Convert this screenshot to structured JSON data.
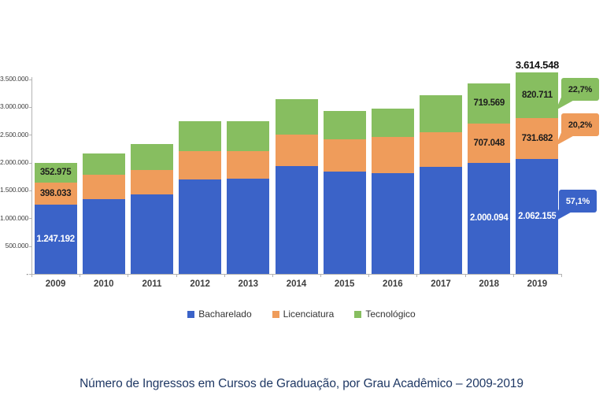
{
  "figure": {
    "title": "Número de Ingressos em Cursos de Graduação, por Grau Acadêmico – 2009-2019",
    "title_color": "#1F3864",
    "background": "#FFFFFF"
  },
  "chart_data": {
    "type": "bar",
    "stacked": true,
    "title": "Número de Ingressos em Cursos de Graduação, por Grau Acadêmico – 2009-2019",
    "xlabel": "",
    "ylabel": "",
    "categories": [
      "2009",
      "2010",
      "2011",
      "2012",
      "2013",
      "2014",
      "2015",
      "2016",
      "2017",
      "2018",
      "2019"
    ],
    "series": [
      {
        "name": "Bacharelado",
        "color": "#3B63C8",
        "label_color": "#FFFFFF",
        "values": [
          1247192,
          1350000,
          1430000,
          1690000,
          1710000,
          1940000,
          1840000,
          1810000,
          1920000,
          2000094,
          2062155
        ]
      },
      {
        "name": "Licenciatura",
        "color": "#EF9C5B",
        "label_color": "#1D1D1D",
        "values": [
          398033,
          425000,
          440000,
          510000,
          495000,
          570000,
          575000,
          655000,
          620000,
          707048,
          731682
        ]
      },
      {
        "name": "Tecnológico",
        "color": "#87BE60",
        "label_color": "#1D1D1D",
        "values": [
          352975,
          390000,
          470000,
          545000,
          535000,
          630000,
          515000,
          505000,
          670000,
          719569,
          820711
        ]
      }
    ],
    "value_labels": {
      "2009": {
        "Bacharelado": "1.247.192",
        "Licenciatura": "398.033",
        "Tecnológico": "352.975"
      },
      "2018": {
        "Bacharelado": "2.000.094",
        "Licenciatura": "707.048",
        "Tecnológico": "719.569"
      },
      "2019": {
        "Bacharelado": "2.062.155",
        "Licenciatura": "731.682",
        "Tecnológico": "820.711",
        "total": "3.614.548"
      }
    },
    "callouts": [
      {
        "label": "22,7%",
        "series": "Tecnológico",
        "fill": "#87BE60",
        "text_color": "#1D1D1D"
      },
      {
        "label": "20,2%",
        "series": "Licenciatura",
        "fill": "#EF9C5B",
        "text_color": "#1D1D1D"
      },
      {
        "label": "57,1%",
        "series": "Bacharelado",
        "fill": "#3B63C8",
        "text_color": "#FFFFFF"
      }
    ],
    "y_axis": {
      "min": 0,
      "max": 3500000,
      "tick_interval": 500000,
      "tick_labels": [
        "3.500.000",
        "3.000.000",
        "2.500.000",
        "2.000.000",
        "1.500.000",
        "1.000.000",
        "500.000",
        "-"
      ],
      "gridlines": false
    },
    "legend": {
      "position": "bottom",
      "entries": [
        "Bacharelado",
        "Licenciatura",
        "Tecnológico"
      ]
    }
  }
}
